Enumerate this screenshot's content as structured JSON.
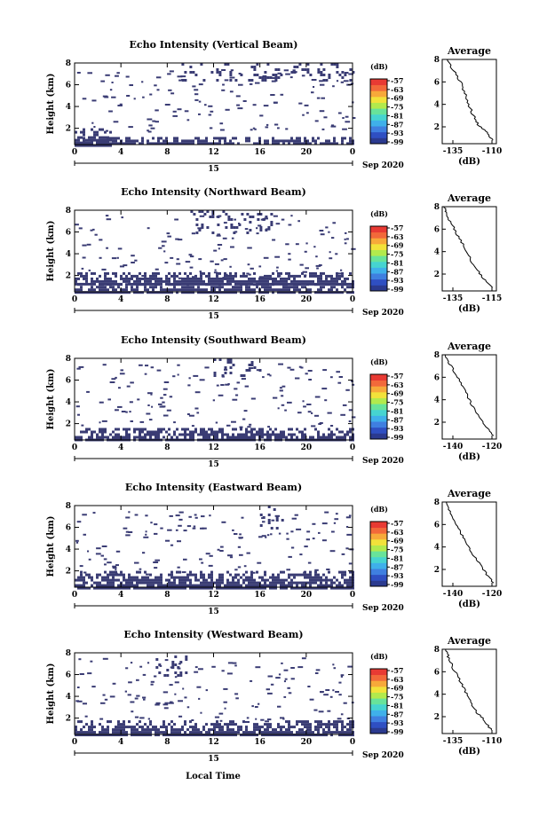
{
  "figure": {
    "shared_xlabel": "Local Time",
    "date_label": "Sep 2020",
    "height_label": "Height (km)",
    "x_ticks": [
      "0",
      "4",
      "8",
      "12",
      "16",
      "20",
      "0"
    ],
    "day_label": "15",
    "y_ticks": [
      "2",
      "4",
      "6",
      "8"
    ],
    "colorbar": {
      "unit": "(dB)",
      "ticks": [
        "-57",
        "-63",
        "-69",
        "-75",
        "-81",
        "-87",
        "-93",
        "-99"
      ],
      "colors": [
        "#2b3a8f",
        "#2f4fc2",
        "#3f7fe0",
        "#3fb0ea",
        "#46d4d0",
        "#68e39a",
        "#b2ea4d",
        "#f2e23a",
        "#f7a93a",
        "#f2693a",
        "#e83a33"
      ]
    },
    "profile_title": "Average",
    "profile_xlabel": "(dB)",
    "profile_yticks": [
      "2",
      "4",
      "6",
      "8"
    ]
  },
  "panels": [
    {
      "title": "Echo Intensity (Vertical Beam)",
      "profile_xticks": [
        "-135",
        "-110"
      ]
    },
    {
      "title": "Echo Intensity (Northward Beam)",
      "profile_xticks": [
        "-135",
        "-115"
      ]
    },
    {
      "title": "Echo Intensity (Southward Beam)",
      "profile_xticks": [
        "-140",
        "-120"
      ]
    },
    {
      "title": "Echo Intensity (Eastward Beam)",
      "profile_xticks": [
        "-140",
        "-120"
      ]
    },
    {
      "title": "Echo Intensity (Westward Beam)",
      "profile_xticks": [
        "-135",
        "-110"
      ]
    }
  ],
  "chart_data": [
    {
      "type": "heatmap",
      "title": "Echo Intensity (Vertical Beam)",
      "xlabel": "Local Time",
      "ylabel": "Height (km)",
      "xlim": [
        0,
        24
      ],
      "ylim": [
        0.5,
        8
      ],
      "colorbar_range_dB": [
        -99,
        -57
      ],
      "x_ticks": [
        0,
        4,
        8,
        12,
        16,
        20,
        24
      ],
      "y_ticks": [
        2,
        4,
        6,
        8
      ],
      "echo_regions": [
        {
          "x": [
            0,
            24
          ],
          "y": [
            0.5,
            1.2
          ],
          "level_dB": -97
        },
        {
          "x": [
            0,
            3
          ],
          "y": [
            0.5,
            2.0
          ],
          "level_dB": -95
        },
        {
          "x": [
            9,
            24
          ],
          "y": [
            6.3,
            8
          ],
          "level_dB": -97
        }
      ]
    },
    {
      "type": "heatmap",
      "title": "Echo Intensity (Northward Beam)",
      "xlabel": "Local Time",
      "ylabel": "Height (km)",
      "xlim": [
        0,
        24
      ],
      "ylim": [
        0.5,
        8
      ],
      "colorbar_range_dB": [
        -99,
        -57
      ],
      "echo_regions": [
        {
          "x": [
            0,
            24
          ],
          "y": [
            0.5,
            1.3
          ],
          "level_dB": -97
        },
        {
          "x": [
            0,
            24
          ],
          "y": [
            1.3,
            2.3
          ],
          "level_dB": -98
        },
        {
          "x": [
            10,
            17
          ],
          "y": [
            6.0,
            8
          ],
          "level_dB": -97
        }
      ]
    },
    {
      "type": "heatmap",
      "title": "Echo Intensity (Southward Beam)",
      "xlabel": "Local Time",
      "ylabel": "Height (km)",
      "xlim": [
        0,
        24
      ],
      "ylim": [
        0.5,
        8
      ],
      "colorbar_range_dB": [
        -99,
        -57
      ],
      "echo_regions": [
        {
          "x": [
            0,
            24
          ],
          "y": [
            0.5,
            1.6
          ],
          "level_dB": -97
        },
        {
          "x": [
            12,
            16
          ],
          "y": [
            6.5,
            8
          ],
          "level_dB": -97
        }
      ]
    },
    {
      "type": "heatmap",
      "title": "Echo Intensity (Eastward Beam)",
      "xlabel": "Local Time",
      "ylabel": "Height (km)",
      "xlim": [
        0,
        24
      ],
      "ylim": [
        0.5,
        8
      ],
      "colorbar_range_dB": [
        -99,
        -57
      ],
      "echo_regions": [
        {
          "x": [
            0,
            24
          ],
          "y": [
            0.5,
            2.0
          ],
          "level_dB": -97
        },
        {
          "x": [
            16,
            18
          ],
          "y": [
            6.0,
            8
          ],
          "level_dB": -97
        }
      ]
    },
    {
      "type": "heatmap",
      "title": "Echo Intensity (Westward Beam)",
      "xlabel": "Local Time",
      "ylabel": "Height (km)",
      "xlim": [
        0,
        24
      ],
      "ylim": [
        0.5,
        8
      ],
      "colorbar_range_dB": [
        -99,
        -57
      ],
      "echo_regions": [
        {
          "x": [
            0,
            24
          ],
          "y": [
            0.5,
            1.8
          ],
          "level_dB": -97
        },
        {
          "x": [
            7,
            10
          ],
          "y": [
            6.0,
            8
          ],
          "level_dB": -97
        }
      ]
    },
    {
      "type": "line",
      "title": "Average",
      "xlabel": "(dB)",
      "ylim": [
        0.5,
        8
      ],
      "xlim": [
        -140,
        -107
      ],
      "series": [
        {
          "points": [
            [
              -109,
              0.8
            ],
            [
              -113,
              1.5
            ],
            [
              -118,
              2.2
            ],
            [
              -121,
              3.0
            ],
            [
              -124,
              4.0
            ],
            [
              -126,
              5.0
            ],
            [
              -129,
              6.0
            ],
            [
              -133,
              7.0
            ],
            [
              -137,
              8.0
            ]
          ]
        }
      ]
    },
    {
      "type": "line",
      "title": "Average",
      "xlabel": "(dB)",
      "ylim": [
        0.5,
        8
      ],
      "xlim": [
        -139,
        -109
      ],
      "series": [
        {
          "points": [
            [
              -111,
              0.8
            ],
            [
              -116,
              1.6
            ],
            [
              -120,
              2.5
            ],
            [
              -124,
              3.5
            ],
            [
              -127,
              4.5
            ],
            [
              -131,
              5.5
            ],
            [
              -134,
              6.5
            ],
            [
              -137,
              7.5
            ],
            [
              -138,
              8.0
            ]
          ]
        }
      ]
    },
    {
      "type": "line",
      "title": "Average",
      "xlabel": "(dB)",
      "ylim": [
        0.5,
        8
      ],
      "xlim": [
        -145,
        -105
      ],
      "series": [
        {
          "points": [
            [
              -107,
              0.8
            ],
            [
              -113,
              1.6
            ],
            [
              -118,
              2.5
            ],
            [
              -123,
              3.5
            ],
            [
              -127,
              4.5
            ],
            [
              -131,
              5.5
            ],
            [
              -136,
              6.5
            ],
            [
              -140,
              7.3
            ],
            [
              -143,
              8.0
            ]
          ]
        }
      ]
    },
    {
      "type": "line",
      "title": "Average",
      "xlabel": "(dB)",
      "ylim": [
        0.5,
        8
      ],
      "xlim": [
        -145,
        -105
      ],
      "series": [
        {
          "points": [
            [
              -107,
              0.8
            ],
            [
              -113,
              1.7
            ],
            [
              -118,
              2.6
            ],
            [
              -123,
              3.4
            ],
            [
              -126,
              4.1
            ],
            [
              -130,
              5.0
            ],
            [
              -135,
              6.0
            ],
            [
              -139,
              7.0
            ],
            [
              -142,
              8.0
            ]
          ]
        }
      ]
    },
    {
      "type": "line",
      "title": "Average",
      "xlabel": "(dB)",
      "ylim": [
        0.5,
        8
      ],
      "xlim": [
        -140,
        -107
      ],
      "series": [
        {
          "points": [
            [
              -110,
              0.8
            ],
            [
              -114,
              1.6
            ],
            [
              -119,
              2.4
            ],
            [
              -123,
              3.3
            ],
            [
              -126,
              4.2
            ],
            [
              -129,
              5.2
            ],
            [
              -133,
              6.2
            ],
            [
              -136,
              7.2
            ],
            [
              -138,
              8.0
            ]
          ]
        }
      ]
    }
  ]
}
